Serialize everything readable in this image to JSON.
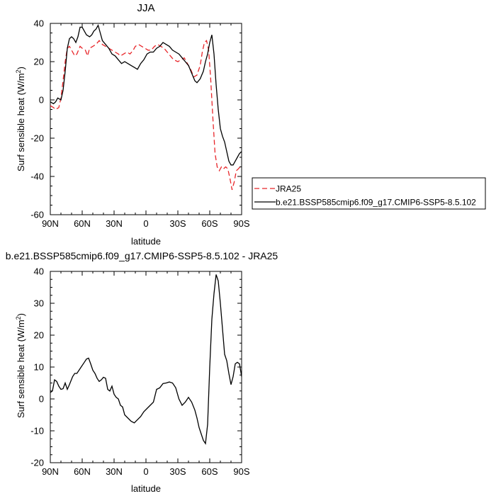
{
  "chart_data": [
    {
      "type": "line",
      "title": "JJA",
      "xlabel": "latitude",
      "ylabel": "Surf sensible heat (W/m²)",
      "ylabel_text": "Surf sensible heat (W/m",
      "ylabel_sup": "2",
      "ylabel_close": ")",
      "xlim": [
        90,
        -90
      ],
      "ylim": [
        -60,
        40
      ],
      "x_ticks": [
        {
          "value": 90,
          "label": "90N"
        },
        {
          "value": 60,
          "label": "60N"
        },
        {
          "value": 30,
          "label": "30N"
        },
        {
          "value": 0,
          "label": "0"
        },
        {
          "value": -30,
          "label": "30S"
        },
        {
          "value": -60,
          "label": "60S"
        },
        {
          "value": -90,
          "label": "90S"
        }
      ],
      "y_ticks": [
        -60,
        -40,
        -20,
        0,
        20,
        40
      ],
      "legend_position": "outside-right-bottom",
      "series": [
        {
          "name": "JRA25",
          "color": "#e8262a",
          "dash": "dashed",
          "points": [
            [
              90,
              -3
            ],
            [
              87,
              -4
            ],
            [
              85,
              -5
            ],
            [
              82,
              -4
            ],
            [
              80,
              1
            ],
            [
              78,
              10
            ],
            [
              76,
              20
            ],
            [
              74,
              27
            ],
            [
              72,
              28
            ],
            [
              70,
              26
            ],
            [
              67,
              23
            ],
            [
              65,
              24
            ],
            [
              62,
              28
            ],
            [
              60,
              27
            ],
            [
              57,
              26
            ],
            [
              55,
              23
            ],
            [
              53,
              27
            ],
            [
              50,
              28
            ],
            [
              47,
              29
            ],
            [
              44,
              31
            ],
            [
              41,
              29
            ],
            [
              38,
              28
            ],
            [
              35,
              27
            ],
            [
              32,
              26
            ],
            [
              29,
              25
            ],
            [
              26,
              24
            ],
            [
              24,
              23
            ],
            [
              21,
              24
            ],
            [
              18,
              25
            ],
            [
              15,
              24
            ],
            [
              12,
              26
            ],
            [
              10,
              28
            ],
            [
              7,
              29
            ],
            [
              4,
              28
            ],
            [
              1,
              27
            ],
            [
              -2,
              26
            ],
            [
              -5,
              26
            ],
            [
              -8,
              28
            ],
            [
              -11,
              29
            ],
            [
              -14,
              28
            ],
            [
              -17,
              27
            ],
            [
              -20,
              25
            ],
            [
              -23,
              23
            ],
            [
              -26,
              21
            ],
            [
              -30,
              20
            ],
            [
              -33,
              21
            ],
            [
              -36,
              22
            ],
            [
              -39,
              19
            ],
            [
              -42,
              16
            ],
            [
              -45,
              12
            ],
            [
              -48,
              13
            ],
            [
              -51,
              18
            ],
            [
              -53,
              25
            ],
            [
              -55,
              30
            ],
            [
              -57,
              31
            ],
            [
              -59,
              26
            ],
            [
              -61,
              10
            ],
            [
              -63,
              -10
            ],
            [
              -65,
              -28
            ],
            [
              -67,
              -35
            ],
            [
              -69,
              -37
            ],
            [
              -71,
              -35
            ],
            [
              -73,
              -36
            ],
            [
              -75,
              -35
            ],
            [
              -77,
              -36
            ],
            [
              -79,
              -41
            ],
            [
              -81,
              -47
            ],
            [
              -83,
              -43
            ],
            [
              -85,
              -37
            ],
            [
              -87,
              -36
            ],
            [
              -90,
              -34
            ]
          ]
        },
        {
          "name": "b.e21.BSSP585cmip6.f09_g17.CMIP6-SSP5-8.5.102",
          "color": "#000000",
          "dash": "solid",
          "points": [
            [
              90,
              -1
            ],
            [
              87,
              -2
            ],
            [
              85,
              -1
            ],
            [
              83,
              1
            ],
            [
              80,
              0
            ],
            [
              78,
              5
            ],
            [
              76,
              15
            ],
            [
              74,
              27
            ],
            [
              72,
              32
            ],
            [
              70,
              33
            ],
            [
              68,
              32
            ],
            [
              66,
              30
            ],
            [
              64,
              33
            ],
            [
              62,
              38
            ],
            [
              60,
              38
            ],
            [
              58,
              36
            ],
            [
              56,
              34
            ],
            [
              53,
              33
            ],
            [
              51,
              34
            ],
            [
              49,
              36
            ],
            [
              47,
              37
            ],
            [
              45,
              39
            ],
            [
              43,
              35
            ],
            [
              41,
              31
            ],
            [
              38,
              29
            ],
            [
              35,
              27
            ],
            [
              32,
              24
            ],
            [
              29,
              23
            ],
            [
              26,
              21
            ],
            [
              23,
              19
            ],
            [
              20,
              20
            ],
            [
              17,
              19
            ],
            [
              14,
              18
            ],
            [
              11,
              17
            ],
            [
              8,
              16
            ],
            [
              5,
              19
            ],
            [
              2,
              21
            ],
            [
              -1,
              24
            ],
            [
              -4,
              25
            ],
            [
              -7,
              25
            ],
            [
              -10,
              27
            ],
            [
              -13,
              28
            ],
            [
              -16,
              30
            ],
            [
              -19,
              29
            ],
            [
              -22,
              28
            ],
            [
              -25,
              26
            ],
            [
              -28,
              25
            ],
            [
              -31,
              24
            ],
            [
              -34,
              22
            ],
            [
              -37,
              20
            ],
            [
              -40,
              18
            ],
            [
              -43,
              14
            ],
            [
              -46,
              10
            ],
            [
              -48,
              9
            ],
            [
              -51,
              11
            ],
            [
              -54,
              15
            ],
            [
              -56,
              20
            ],
            [
              -58,
              24
            ],
            [
              -60,
              30
            ],
            [
              -62,
              34
            ],
            [
              -64,
              24
            ],
            [
              -66,
              8
            ],
            [
              -68,
              -5
            ],
            [
              -70,
              -15
            ],
            [
              -72,
              -19
            ],
            [
              -74,
              -22
            ],
            [
              -76,
              -27
            ],
            [
              -78,
              -32
            ],
            [
              -80,
              -34
            ],
            [
              -82,
              -34
            ],
            [
              -84,
              -32
            ],
            [
              -86,
              -30
            ],
            [
              -88,
              -28
            ],
            [
              -90,
              -27
            ]
          ]
        }
      ]
    },
    {
      "type": "line",
      "title": "b.e21.BSSP585cmip6.f09_g17.CMIP6-SSP5-8.5.102 - JRA25",
      "xlabel": "latitude",
      "ylabel": "Surf sensible heat (W/m²)",
      "ylabel_text": "Surf sensible heat (W/m",
      "ylabel_sup": "2",
      "ylabel_close": ")",
      "xlim": [
        90,
        -90
      ],
      "ylim": [
        -20,
        40
      ],
      "x_ticks": [
        {
          "value": 90,
          "label": "90N"
        },
        {
          "value": 60,
          "label": "60N"
        },
        {
          "value": 30,
          "label": "30N"
        },
        {
          "value": 0,
          "label": "0"
        },
        {
          "value": -30,
          "label": "30S"
        },
        {
          "value": -60,
          "label": "60S"
        },
        {
          "value": -90,
          "label": "90S"
        }
      ],
      "y_ticks": [
        -20,
        -10,
        0,
        10,
        20,
        30,
        40
      ],
      "series": [
        {
          "color": "#000000",
          "dash": "solid",
          "points": [
            [
              90,
              2
            ],
            [
              88,
              2.5
            ],
            [
              86,
              6
            ],
            [
              84,
              5.5
            ],
            [
              82,
              4
            ],
            [
              80,
              3
            ],
            [
              78,
              3.2
            ],
            [
              76,
              5
            ],
            [
              74,
              3
            ],
            [
              72,
              4.5
            ],
            [
              69,
              7
            ],
            [
              67,
              8
            ],
            [
              65,
              8
            ],
            [
              63,
              9
            ],
            [
              61,
              10
            ],
            [
              58,
              11.5
            ],
            [
              56,
              12.5
            ],
            [
              54,
              12.8
            ],
            [
              52,
              11
            ],
            [
              50,
              9
            ],
            [
              48,
              8
            ],
            [
              46,
              6.5
            ],
            [
              44,
              5.5
            ],
            [
              42,
              6
            ],
            [
              40,
              6.8
            ],
            [
              38,
              6.5
            ],
            [
              36,
              3
            ],
            [
              34,
              2.5
            ],
            [
              32,
              4
            ],
            [
              30,
              1.5
            ],
            [
              28,
              0.5
            ],
            [
              26,
              0
            ],
            [
              24,
              -2
            ],
            [
              22,
              -2.5
            ],
            [
              20,
              -5
            ],
            [
              17,
              -6
            ],
            [
              14,
              -7
            ],
            [
              11,
              -7.5
            ],
            [
              8,
              -6.5
            ],
            [
              5,
              -5.5
            ],
            [
              2,
              -4
            ],
            [
              -1,
              -3
            ],
            [
              -4,
              -2
            ],
            [
              -7,
              -1
            ],
            [
              -10,
              3
            ],
            [
              -13,
              3.5
            ],
            [
              -16,
              4.8
            ],
            [
              -19,
              5
            ],
            [
              -22,
              5.3
            ],
            [
              -25,
              5
            ],
            [
              -28,
              3.5
            ],
            [
              -31,
              0
            ],
            [
              -34,
              -2
            ],
            [
              -37,
              -1
            ],
            [
              -40,
              0.5
            ],
            [
              -43,
              -1
            ],
            [
              -46,
              -3.5
            ],
            [
              -48,
              -6
            ],
            [
              -50,
              -9
            ],
            [
              -52,
              -11
            ],
            [
              -54,
              -13
            ],
            [
              -56,
              -14
            ],
            [
              -58,
              -8
            ],
            [
              -60,
              10
            ],
            [
              -62,
              25
            ],
            [
              -64,
              33
            ],
            [
              -66,
              39
            ],
            [
              -68,
              37
            ],
            [
              -70,
              30
            ],
            [
              -72,
              22
            ],
            [
              -74,
              14
            ],
            [
              -76,
              12
            ],
            [
              -78,
              8
            ],
            [
              -80,
              4.5
            ],
            [
              -82,
              7
            ],
            [
              -84,
              11
            ],
            [
              -86,
              11.5
            ],
            [
              -88,
              11
            ],
            [
              -90,
              7
            ]
          ]
        }
      ]
    }
  ]
}
